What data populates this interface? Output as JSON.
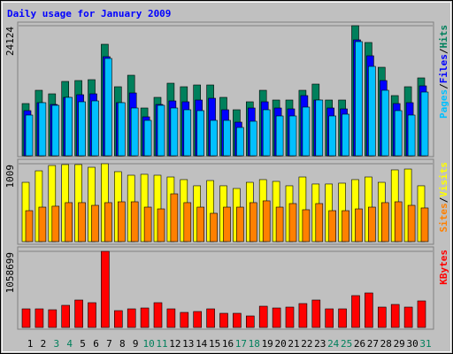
{
  "chart_data": [
    {
      "type": "bar",
      "title": "Daily usage for January 2009",
      "legend_separator": "/",
      "series": [
        {
          "name": "Hits",
          "color": "#00805c",
          "values": [
            9682,
            12143,
            11487,
            13784,
            13949,
            14113,
            20677,
            12800,
            14933,
            8861,
            10831,
            13456,
            12800,
            13128,
            13128,
            10831,
            8533,
            10010,
            12143,
            10338,
            10338,
            12143,
            13292,
            10338,
            10338,
            24124,
            21005,
            16410,
            11159,
            12800,
            14441
          ]
        },
        {
          "name": "Files",
          "color": "#0000ff",
          "values": [
            8369,
            9846,
            9518,
            10831,
            11323,
            11487,
            18379,
            9846,
            11651,
            7220,
            9518,
            10174,
            10010,
            10338,
            10667,
            8533,
            6236,
            8861,
            10010,
            8861,
            8697,
            11159,
            10338,
            8861,
            8697,
            21497,
            18543,
            13949,
            9682,
            9846,
            12964
          ]
        },
        {
          "name": "Pages",
          "color": "#00c0ff",
          "values": [
            7549,
            9846,
            9354,
            10831,
            10010,
            10174,
            18051,
            9846,
            8861,
            6564,
            9354,
            8861,
            8533,
            8369,
            6564,
            6564,
            5251,
            6400,
            8533,
            7385,
            7385,
            9026,
            10338,
            7385,
            7713,
            21169,
            16574,
            12143,
            8369,
            7549,
            11815
          ]
        }
      ],
      "ylim": [
        0,
        24124
      ],
      "yticks": [
        24124
      ]
    },
    {
      "type": "bar",
      "legend_separator": "/",
      "series": [
        {
          "name": "Visits",
          "color": "#ffff00",
          "values": [
            768,
            917,
            986,
            998,
            998,
            963,
            1009,
            906,
            860,
            872,
            860,
            837,
            803,
            723,
            791,
            723,
            688,
            768,
            803,
            780,
            723,
            837,
            746,
            746,
            757,
            803,
            837,
            768,
            929,
            940,
            723
          ]
        },
        {
          "name": "Sites",
          "color": "#ff8000",
          "values": [
            401,
            447,
            459,
            505,
            505,
            470,
            505,
            516,
            516,
            447,
            424,
            619,
            505,
            447,
            367,
            447,
            447,
            505,
            528,
            447,
            493,
            413,
            493,
            401,
            401,
            424,
            447,
            505,
            516,
            470,
            436
          ]
        }
      ],
      "ylim": [
        0,
        1009
      ],
      "yticks": [
        1009
      ]
    },
    {
      "type": "bar",
      "categories": [
        "1",
        "2",
        "3",
        "4",
        "5",
        "6",
        "7",
        "8",
        "9",
        "10",
        "11",
        "12",
        "13",
        "14",
        "15",
        "16",
        "17",
        "18",
        "19",
        "20",
        "21",
        "22",
        "23",
        "24",
        "25",
        "26",
        "27",
        "28",
        "29",
        "30",
        "31"
      ],
      "category_colors": [
        "#000000",
        "#000000",
        "#00805c",
        "#00805c",
        "#000000",
        "#000000",
        "#000000",
        "#000000",
        "#000000",
        "#00805c",
        "#00805c",
        "#000000",
        "#000000",
        "#000000",
        "#000000",
        "#000000",
        "#00805c",
        "#00805c",
        "#000000",
        "#000000",
        "#000000",
        "#000000",
        "#000000",
        "#00805c",
        "#00805c",
        "#000000",
        "#000000",
        "#000000",
        "#000000",
        "#000000",
        "#00805c"
      ],
      "series": [
        {
          "name": "KBytes",
          "color": "#ff0000",
          "values": [
            258510,
            258510,
            246200,
            307750,
            381610,
            344680,
            1058699,
            233890,
            258510,
            270820,
            344680,
            258510,
            209270,
            221580,
            258510,
            196960,
            196960,
            160030,
            295440,
            270820,
            283130,
            332370,
            381610,
            258510,
            258510,
            443160,
            480090,
            283130,
            320060,
            283130,
            369300
          ]
        }
      ],
      "ylim": [
        0,
        1058699
      ],
      "yticks": [
        1058699
      ]
    }
  ]
}
